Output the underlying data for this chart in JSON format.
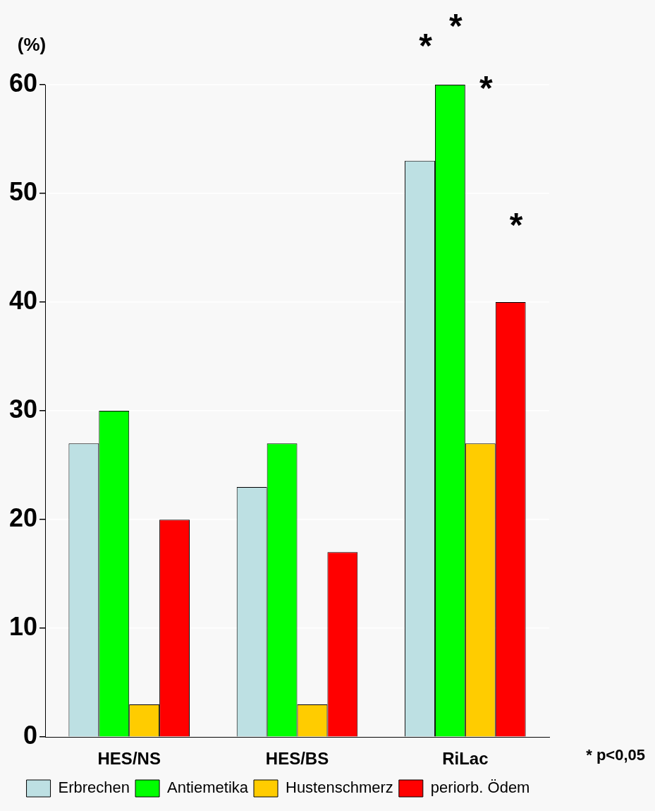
{
  "chart_data": {
    "type": "bar",
    "ylabel": "(%)",
    "categories": [
      "HES/NS",
      "HES/BS",
      "RiLac"
    ],
    "series": [
      {
        "name": "Erbrechen",
        "color": "#bde0e3",
        "values": [
          27,
          23,
          53
        ]
      },
      {
        "name": "Antiemetika",
        "color": "#00ff00",
        "values": [
          30,
          27,
          60
        ]
      },
      {
        "name": "Hustenschmerz",
        "color": "#ffcc00",
        "values": [
          3,
          3,
          27
        ]
      },
      {
        "name": "periorb. Ödem",
        "color": "#ff0000",
        "values": [
          20,
          17,
          40
        ]
      }
    ],
    "ylim": [
      0,
      60
    ],
    "yticks": [
      0,
      10,
      20,
      30,
      40,
      50,
      60
    ],
    "grid": "y",
    "legend": "bottom",
    "annotations": [
      "*",
      "*",
      "*",
      "*",
      "* p<0,05"
    ]
  }
}
